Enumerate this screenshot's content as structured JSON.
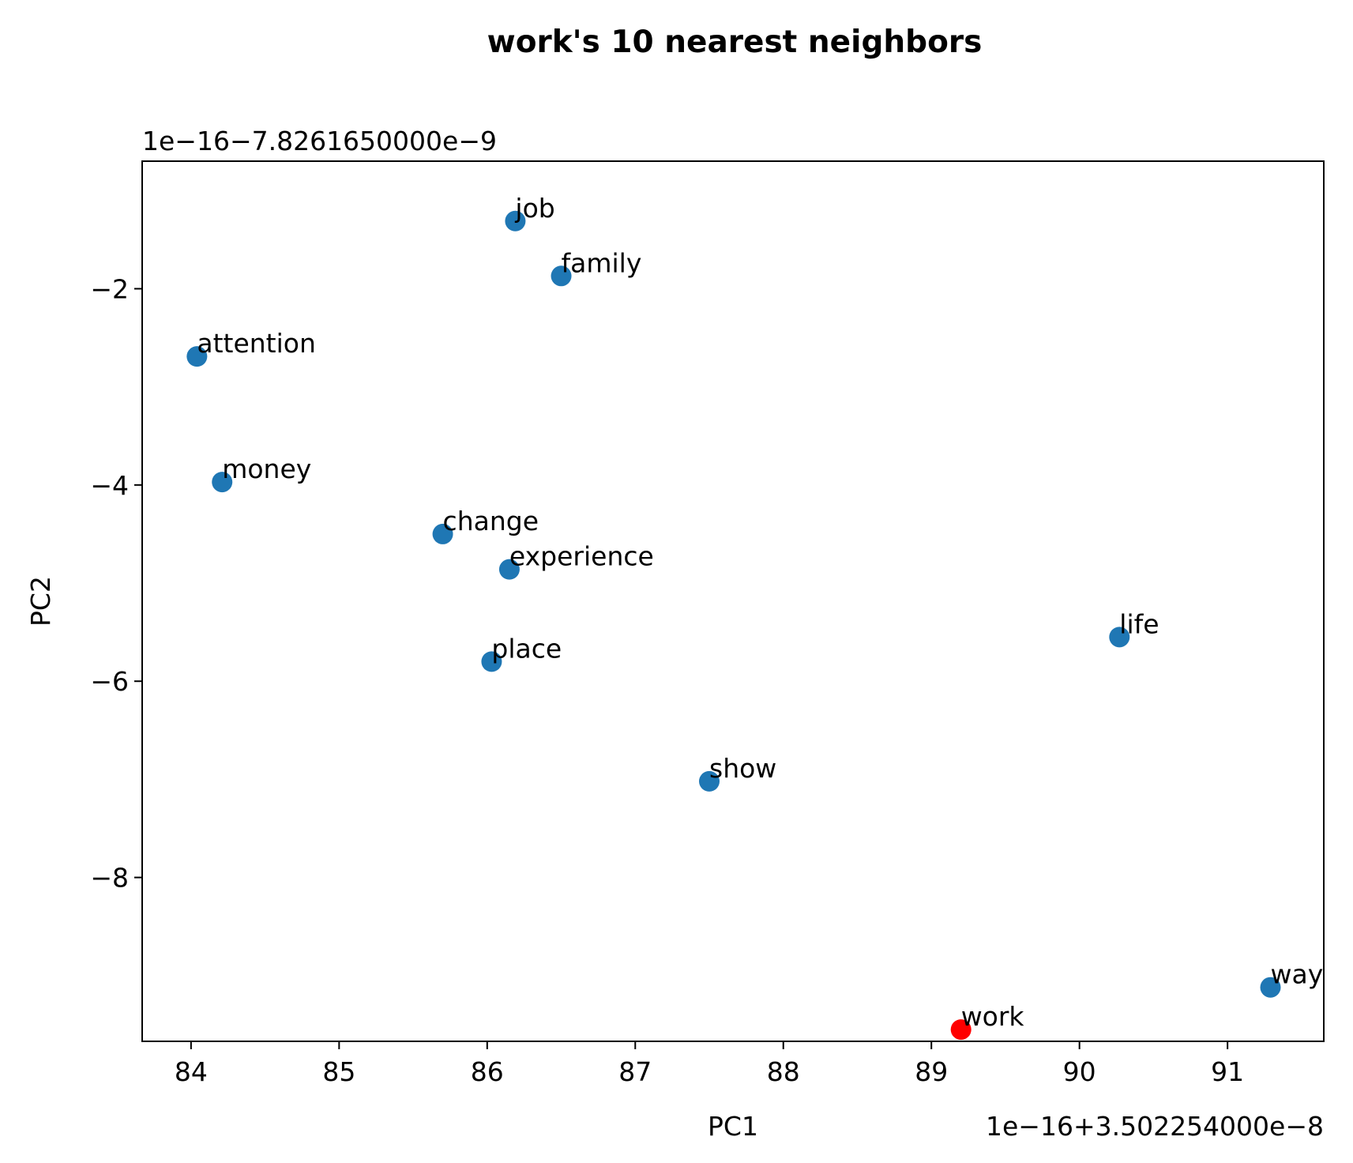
{
  "chart_data": {
    "type": "scatter",
    "title": "work's 10 nearest neighbors",
    "xlabel": "PC1",
    "ylabel": "PC2",
    "x_offset_text": "1e−16+3.502254000e−8",
    "y_offset_text": "1e−16−7.8261650000e−9",
    "xlim": [
      83.67,
      91.65
    ],
    "ylim": [
      -9.67,
      -0.7
    ],
    "x_ticks": [
      84,
      85,
      86,
      87,
      88,
      89,
      90,
      91
    ],
    "x_tick_labels": [
      "84",
      "85",
      "86",
      "87",
      "88",
      "89",
      "90",
      "91"
    ],
    "y_ticks": [
      -2,
      -4,
      -6,
      -8
    ],
    "y_tick_labels": [
      "−2",
      "−4",
      "−6",
      "−8"
    ],
    "grid": false,
    "series": [
      {
        "points": [
          {
            "label": "job",
            "x": 86.19,
            "y": -1.31
          },
          {
            "label": "family",
            "x": 86.5,
            "y": -1.87
          },
          {
            "label": "attention",
            "x": 84.04,
            "y": -2.69
          },
          {
            "label": "money",
            "x": 84.21,
            "y": -3.97
          },
          {
            "label": "change",
            "x": 85.7,
            "y": -4.5
          },
          {
            "label": "experience",
            "x": 86.15,
            "y": -4.86
          },
          {
            "label": "place",
            "x": 86.03,
            "y": -5.8
          },
          {
            "label": "life",
            "x": 90.27,
            "y": -5.55
          },
          {
            "label": "show",
            "x": 87.5,
            "y": -7.02
          },
          {
            "label": "way",
            "x": 91.29,
            "y": -9.12
          }
        ],
        "color": "#1f77b4"
      },
      {
        "points": [
          {
            "label": "work",
            "x": 89.2,
            "y": -9.55
          }
        ],
        "color": "#ff0000"
      }
    ]
  }
}
